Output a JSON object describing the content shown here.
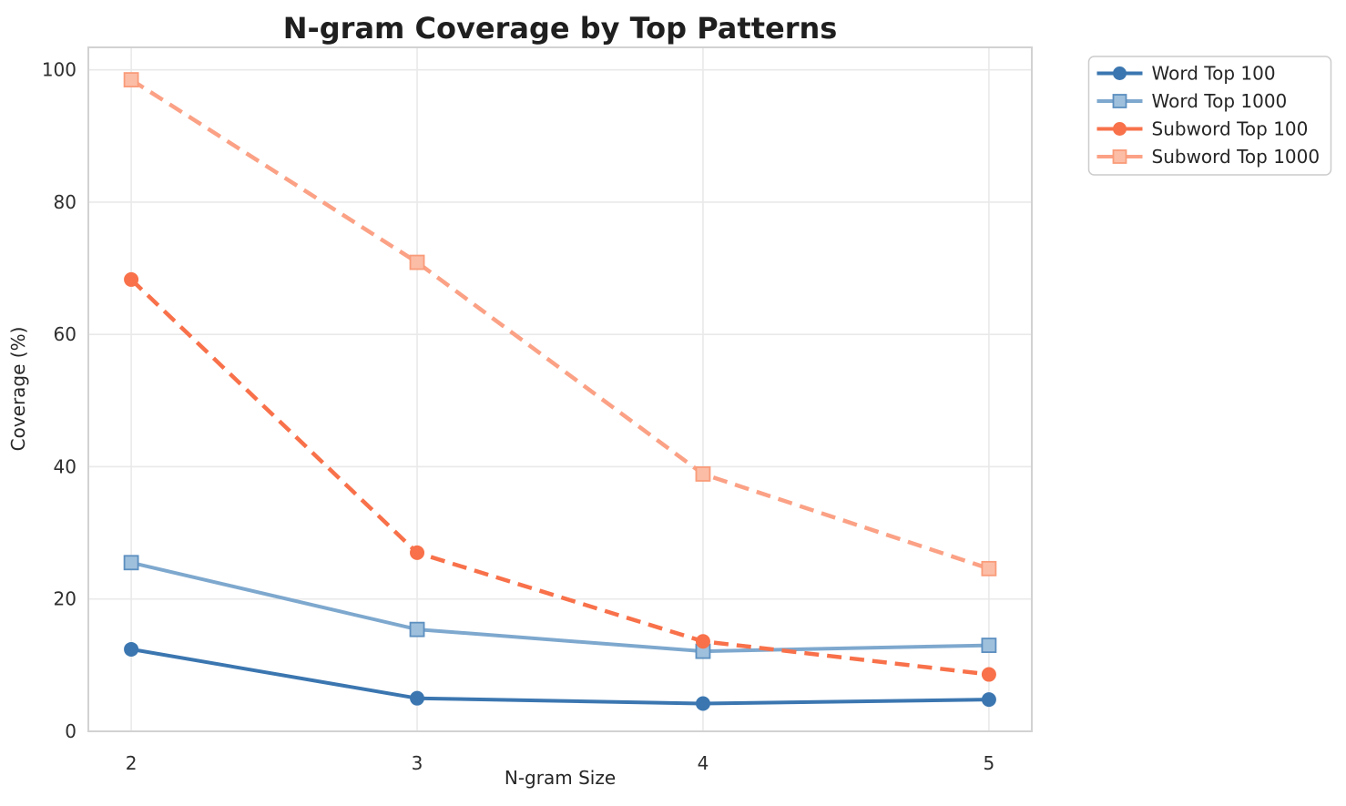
{
  "chart_data": {
    "type": "line",
    "title": "N-gram Coverage by Top Patterns",
    "xlabel": "N-gram Size",
    "ylabel": "Coverage (%)",
    "x": [
      2,
      3,
      4,
      5
    ],
    "xticks": [
      2,
      3,
      4,
      5
    ],
    "yticks": [
      0,
      20,
      40,
      60,
      80,
      100
    ],
    "xlim": [
      1.85,
      5.15
    ],
    "ylim": [
      0,
      103.4
    ],
    "grid": true,
    "legend_position": "outside-upper-right",
    "series": [
      {
        "name": "Word Top 100",
        "values": [
          12.4,
          5.0,
          4.2,
          4.8
        ],
        "color": "#3b76b0",
        "line_style": "solid",
        "marker": "circle",
        "marker_fill": "#3b76b0",
        "marker_edge": "#3b76b0"
      },
      {
        "name": "Word Top 1000",
        "values": [
          25.5,
          15.4,
          12.1,
          13.0
        ],
        "color": "#7ea8ce",
        "line_style": "solid",
        "marker": "square",
        "marker_fill": "#9fc0dc",
        "marker_edge": "#5c8fc0"
      },
      {
        "name": "Subword Top 100",
        "values": [
          68.3,
          27.0,
          13.6,
          8.6
        ],
        "color": "#f8714a",
        "line_style": "dashed",
        "marker": "circle",
        "marker_fill": "#f8714a",
        "marker_edge": "#f8714a"
      },
      {
        "name": "Subword Top 1000",
        "values": [
          98.5,
          70.9,
          38.9,
          24.6
        ],
        "color": "#fba185",
        "line_style": "dashed",
        "marker": "square",
        "marker_fill": "#fcbda6",
        "marker_edge": "#f99c7a"
      }
    ],
    "colors": {
      "grid": "#e9e9e9",
      "frame": "#d2d2d2",
      "legend_border": "#cccccc",
      "background": "#ffffff",
      "text": "#262626"
    }
  }
}
